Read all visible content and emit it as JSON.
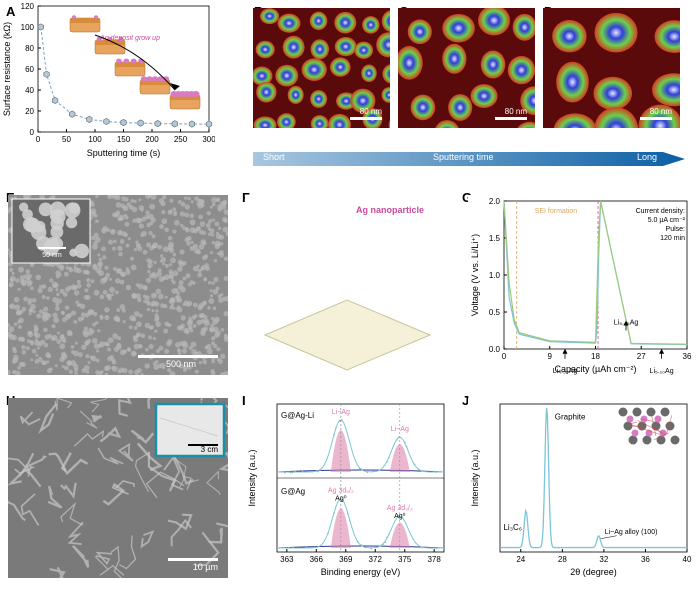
{
  "labels": {
    "A": "A",
    "B": "B",
    "C": "C",
    "D": "D",
    "E": "E",
    "F": "F",
    "G": "G",
    "H": "H",
    "I": "I",
    "J": "J"
  },
  "panelA": {
    "xlabel": "Sputtering time (s)",
    "ylabel": "Surface resistance (kΩ)",
    "xlim": [
      0,
      300
    ],
    "ylim": [
      0,
      120
    ],
    "xtick_step": 50,
    "ytick_step": 20,
    "x": [
      5,
      15,
      30,
      60,
      90,
      120,
      150,
      180,
      210,
      240,
      270,
      300
    ],
    "y": [
      100,
      55,
      30,
      17,
      12,
      10,
      9,
      8.5,
      8,
      7.8,
      7.6,
      7.5
    ],
    "line_color": "#7da3c4",
    "marker_fill": "#aec9dc",
    "marker_edge": "#666",
    "annotation": "Ag deposit grow up",
    "annotation_color": "#c94b9c",
    "arrow_color": "#000000",
    "inset_fill": "#e8a45e",
    "inset_top": "#d88b3a",
    "dot_color": "#d97bc2"
  },
  "afm": {
    "scalebar": "80 nm",
    "colors": {
      "low": "#5a0a0a",
      "mid1": "#d63a1f",
      "mid2": "#6bd14a",
      "high": "#2f3ed8",
      "peak": "#e8e8ff"
    },
    "B_blob_sizes": [
      18,
      20,
      22,
      19,
      21,
      17,
      20
    ],
    "C_blob_sizes": [
      26,
      30,
      28,
      32,
      27
    ],
    "D_blob_sizes": [
      38,
      42,
      40,
      36
    ]
  },
  "timebar": {
    "short": "Short",
    "long": "Long",
    "center": "Sputtering time",
    "grad_from": "#a8c7e0",
    "grad_to": "#0b5fa5"
  },
  "panelE": {
    "bg": "#8d8d8d",
    "grain": "#b8b8b8",
    "scalebar_main": "500 nm",
    "scalebar_inset": "50 nm",
    "inset_bg": "#6a6a6a",
    "inset_grain": "#cfcfcf"
  },
  "panelF": {
    "annotation": "Ag nanoparticle",
    "annotation_color": "#c94b9c",
    "base": "#f5f0d8",
    "grad_colors": [
      "#0a2a7a",
      "#1e7a2a",
      "#e8d030",
      "#d94a1f",
      "#c94b9c"
    ]
  },
  "panelG": {
    "xlabel": "Capacity (µAh cm⁻²)",
    "ylabel": "Voltage (V vs. Li/Li⁺)",
    "xlim": [
      0,
      36
    ],
    "ylim": [
      0,
      2.0
    ],
    "xtick_step": 9,
    "ytick_step": 0.5,
    "info_lines": [
      "Current density:",
      "5.0 µA cm⁻²",
      "Pulse:",
      "120 min"
    ],
    "info_color": "#000",
    "sei_label": "SEI formation",
    "sei_color": "#d8a860",
    "sei_x": 2.5,
    "dash_x": 18.5,
    "dash_color": "#c94b9c",
    "phase_labels": [
      "Li₄.₅₅Ag",
      "Li₅.₀₅Ag",
      "Li₅.₁₀Ag"
    ],
    "phase_x": [
      12,
      24,
      31
    ],
    "line_color_bg": "#7dc5d8",
    "line_color_fg": "#9cc97a",
    "curve_bg_x": [
      0,
      1,
      2,
      3,
      9,
      18,
      18.2,
      18.4,
      18.6,
      19,
      25,
      36
    ],
    "curve_bg_y": [
      2.0,
      0.7,
      0.35,
      0.2,
      0.1,
      0.08,
      0.2,
      0.5,
      1.2,
      2.0,
      0.07,
      0.06
    ],
    "curve_fg_x": [
      0,
      1,
      2,
      3,
      9,
      18,
      18.1,
      18.3,
      18.6,
      19,
      25,
      36
    ],
    "curve_fg_y": [
      2.0,
      0.9,
      0.4,
      0.22,
      0.11,
      0.09,
      0.3,
      0.8,
      1.5,
      2.0,
      0.075,
      0.065
    ]
  },
  "panelH": {
    "bg": "#7a7a7a",
    "vein": "#c8c8c8",
    "scalebar": "10 µm",
    "inset_border": "#1a8fa8",
    "inset_fill": "#e8e8e8",
    "inset_label": "3 cm"
  },
  "panelI": {
    "xlabel": "Binding energy (eV)",
    "ylabel": "Intensity (a.u.)",
    "xlim": [
      362,
      379
    ],
    "xtick_step": 3,
    "top_label": "G@Ag-Li",
    "bot_label": "G@Ag",
    "peak_labels_top": [
      "Li−Ag",
      "Li−Ag"
    ],
    "peak_labels_bot": [
      "Ag 3d₅/₂",
      "Ag 3d₃/₂"
    ],
    "peak_labels_bot2": [
      "Ag⁰",
      "Ag⁰"
    ],
    "peak_x": [
      368.5,
      374.5
    ],
    "line_color": "#7dc5d8",
    "data_color": "#a8a8a8",
    "fill_color": "#d97ba8",
    "baseline_color": "#2a3a8a",
    "dash_color": "#888",
    "top_peaks": {
      "heights": [
        0.9,
        0.6
      ]
    },
    "bot_peaks": {
      "heights": [
        0.85,
        0.55
      ]
    }
  },
  "panelJ": {
    "xlabel": "2θ (degree)",
    "ylabel": "Intensity (a.u.)",
    "xlim": [
      22,
      40
    ],
    "xtick_step": 4,
    "line_color": "#7dc5d8",
    "peak_x": [
      24.5,
      26.5,
      31.5
    ],
    "peak_y": [
      0.25,
      0.95,
      0.08
    ],
    "labels": {
      "graphite": "Graphite",
      "lic6": "Li₃C₆",
      "alloy": "Li−Ag alloy (100)"
    },
    "inset_atom1": "#6a6a6a",
    "inset_atom2": "#d97bc2",
    "inset_bond": "#c94a4a"
  }
}
